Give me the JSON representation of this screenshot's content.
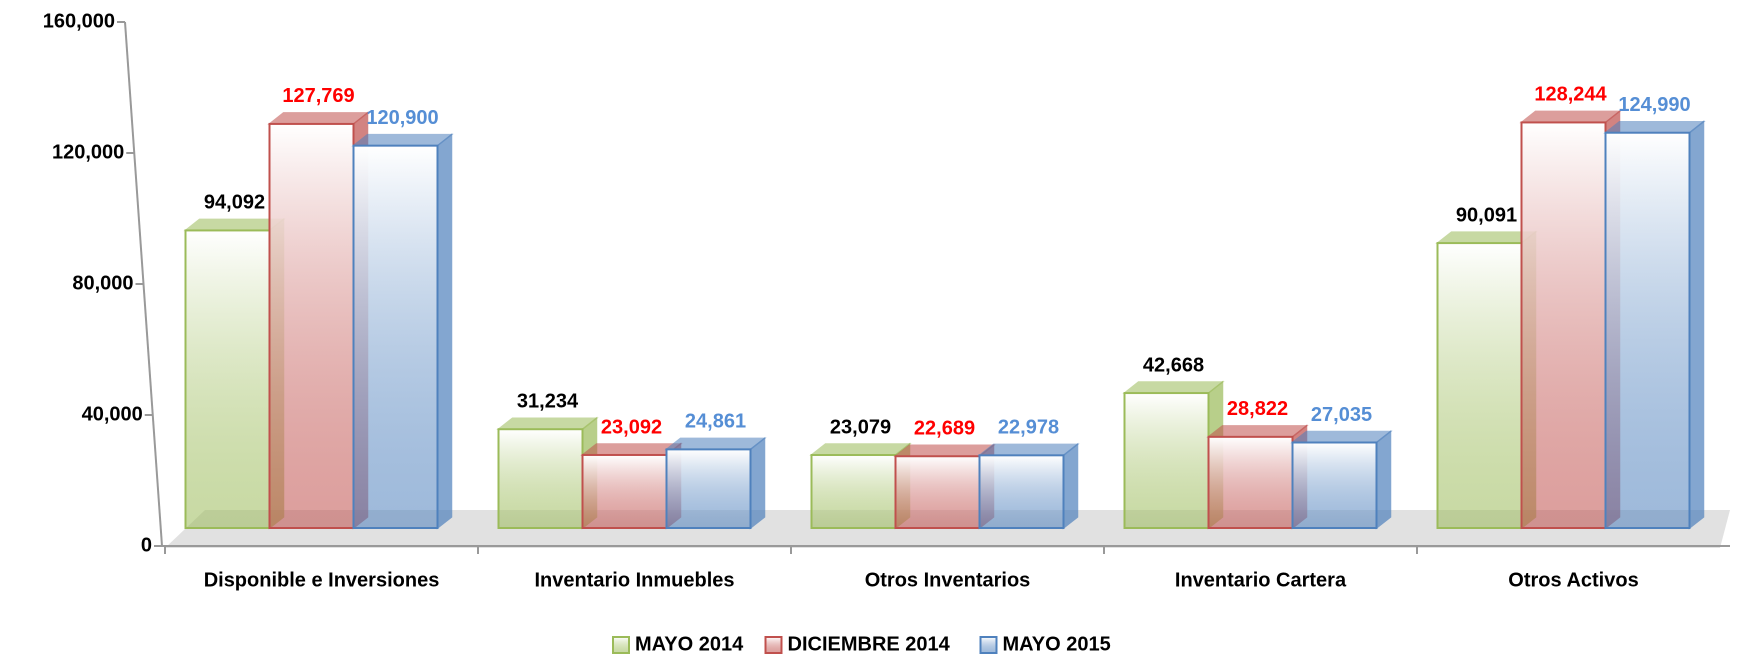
{
  "chart_data": {
    "type": "bar3d",
    "categories": [
      "Disponible e Inversiones",
      "Inventario Inmuebles",
      "Otros Inventarios",
      "Inventario Cartera",
      "Otros Activos"
    ],
    "series": [
      {
        "name": "MAYO 2014",
        "color": "#9bbb59",
        "label_color": "#000000",
        "values": [
          94092,
          31234,
          23079,
          42668,
          90091
        ],
        "value_labels": [
          "94,092",
          "31,234",
          "23,079",
          "42,668",
          "90,091"
        ]
      },
      {
        "name": "DICIEMBRE 2014",
        "color": "#c0504d",
        "label_color": "#ff0000",
        "values": [
          127769,
          23092,
          22689,
          28822,
          128244
        ],
        "value_labels": [
          "127,769",
          "23,092",
          "22,689",
          "28,822",
          "128,244"
        ]
      },
      {
        "name": "MAYO 2015",
        "color": "#4f81bd",
        "label_color": "#558ed5",
        "values": [
          120900,
          24861,
          22978,
          27035,
          124990
        ],
        "value_labels": [
          "120,900",
          "24,861",
          "22,978",
          "27,035",
          "124,990"
        ]
      }
    ],
    "ylim": [
      0,
      160000
    ],
    "yticks": [
      0,
      {
        "value": 40000,
        "label": "40,000"
      },
      {
        "value": 80000,
        "label": "80,000"
      },
      {
        "value": 120000,
        "label": "120,000"
      },
      {
        "value": 160000,
        "label": "160,000"
      }
    ],
    "legend": "bottom"
  }
}
